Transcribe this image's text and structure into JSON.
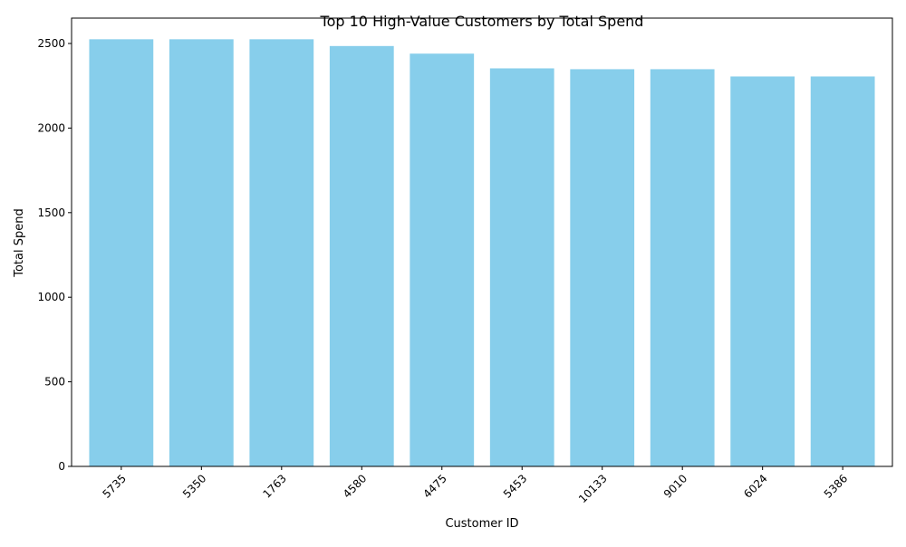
{
  "colors": {
    "bar": "#87ceeb",
    "axis": "#000000",
    "background": "#ffffff"
  },
  "chart_data": {
    "type": "bar",
    "title": "Top 10 High-Value Customers by Total Spend",
    "xlabel": "Customer ID",
    "ylabel": "Total Spend",
    "categories": [
      "5735",
      "5350",
      "1763",
      "4580",
      "4475",
      "5453",
      "10133",
      "9010",
      "6024",
      "5386"
    ],
    "values": [
      2525,
      2525,
      2525,
      2485,
      2440,
      2353,
      2348,
      2348,
      2305,
      2305
    ],
    "ylim": [
      0,
      2650
    ],
    "yticks": [
      0,
      500,
      1000,
      1500,
      2000,
      2500
    ],
    "grid": false,
    "legend": "none",
    "xtick_rotation": 45
  }
}
